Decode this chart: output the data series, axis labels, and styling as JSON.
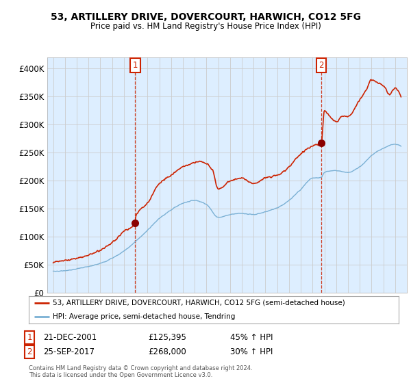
{
  "title": "53, ARTILLERY DRIVE, DOVERCOURT, HARWICH, CO12 5FG",
  "subtitle": "Price paid vs. HM Land Registry's House Price Index (HPI)",
  "legend_line1": "53, ARTILLERY DRIVE, DOVERCOURT, HARWICH, CO12 5FG (semi-detached house)",
  "legend_line2": "HPI: Average price, semi-detached house, Tendring",
  "footer": "Contains HM Land Registry data © Crown copyright and database right 2024.\nThis data is licensed under the Open Government Licence v3.0.",
  "annotation1": {
    "label": "1",
    "date": "21-DEC-2001",
    "price": "£125,395",
    "hpi": "45% ↑ HPI"
  },
  "annotation2": {
    "label": "2",
    "date": "25-SEP-2017",
    "price": "£268,000",
    "hpi": "30% ↑ HPI"
  },
  "hpi_color": "#7ab0d4",
  "price_color": "#cc2200",
  "marker_color": "#8b0000",
  "vline_color": "#cc2200",
  "annotation_box_color": "#cc2200",
  "plot_bg_color": "#ddeeff",
  "ylim": [
    0,
    420000
  ],
  "yticks": [
    0,
    50000,
    100000,
    150000,
    200000,
    250000,
    300000,
    350000,
    400000
  ],
  "ytick_labels": [
    "£0",
    "£50K",
    "£100K",
    "£150K",
    "£200K",
    "£250K",
    "£300K",
    "£350K",
    "£400K"
  ],
  "background_color": "#ffffff",
  "grid_color": "#cccccc",
  "sale1_year": 2001.96,
  "sale1_price": 125395,
  "sale2_year": 2017.75,
  "sale2_price": 268000
}
